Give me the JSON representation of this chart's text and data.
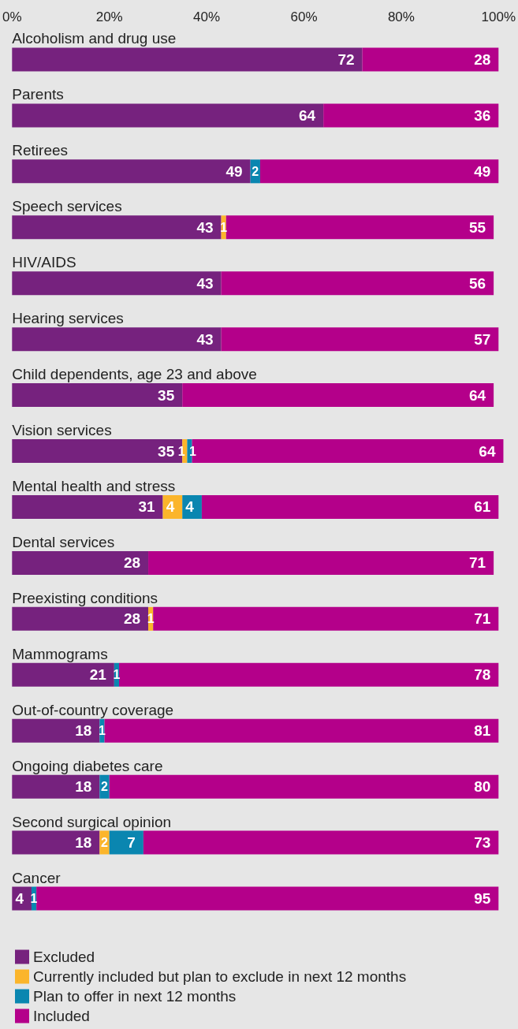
{
  "chart_data": {
    "type": "bar",
    "orientation": "horizontal",
    "stacked": true,
    "data_labels": true,
    "grid": false,
    "legend": "bottom left",
    "categories": [
      "Alcoholism and drug use",
      "Parents",
      "Retirees",
      "Speech services",
      "HIV/AIDS",
      "Hearing services",
      "Child dependents, age 23 and above",
      "Vision services",
      "Mental health and stress",
      "Dental services",
      "Preexisting conditions",
      "Mammograms",
      "Out-of-country coverage",
      "Ongoing diabetes care",
      "Second surgical opinion",
      "Cancer"
    ],
    "xlim": [
      0,
      101
    ],
    "xticks": [
      {
        "value": 0,
        "label": "0%"
      },
      {
        "value": 20,
        "label": "20%"
      },
      {
        "value": 40,
        "label": "40%"
      },
      {
        "value": 60,
        "label": "60%"
      },
      {
        "value": 80,
        "label": "80%"
      },
      {
        "value": 100,
        "label": "100%"
      }
    ],
    "series": [
      {
        "name": "Excluded",
        "color": "#76227e",
        "values": [
          72,
          64,
          49,
          43,
          43,
          43,
          35,
          35,
          31,
          28,
          28,
          21,
          18,
          18,
          18,
          4
        ]
      },
      {
        "name": "Currently included but plan to exclude in next 12 months",
        "color": "#fbb52b",
        "values": [
          null,
          null,
          null,
          1,
          null,
          null,
          null,
          1,
          4,
          null,
          1,
          null,
          null,
          null,
          2,
          null
        ]
      },
      {
        "name": "Plan to offer in next 12 months",
        "color": "#0a86b0",
        "values": [
          null,
          null,
          2,
          null,
          null,
          null,
          null,
          1,
          4,
          null,
          null,
          1,
          1,
          2,
          7,
          1
        ]
      },
      {
        "name": "Included",
        "color": "#b4008a",
        "values": [
          28,
          36,
          49,
          55,
          56,
          57,
          64,
          64,
          61,
          71,
          71,
          78,
          81,
          80,
          73,
          95
        ]
      }
    ]
  }
}
